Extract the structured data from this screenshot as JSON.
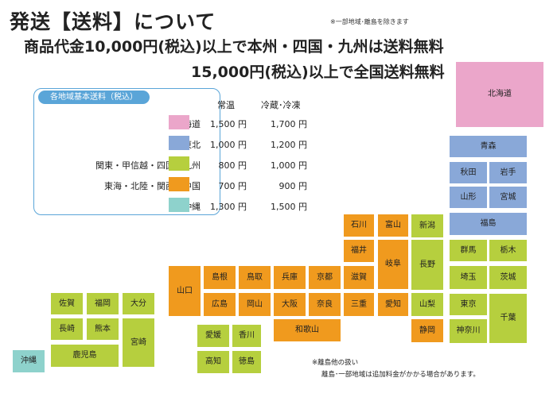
{
  "header": {
    "title": "発送【送料】について",
    "note": "※一部地域･離島を除きます",
    "line1": "商品代金10,000円(税込)以上で本州・四国・九州は送料無料",
    "line2": "15,000円(税込)以上で全国送料無料"
  },
  "rate_table": {
    "title": "各地域基本送料（税込）",
    "col_normal": "常温",
    "col_cold": "冷蔵･冷凍",
    "rows": [
      {
        "region": "北海道",
        "normal": "1,500 円",
        "cold": "1,700 円",
        "color": "#eba6ca"
      },
      {
        "region": "東北",
        "normal": "1,000 円",
        "cold": "1,200 円",
        "color": "#89a8d8"
      },
      {
        "region": "関東・甲信越・四国・九州",
        "normal": "800 円",
        "cold": "1,000 円",
        "color": "#b6cf3e"
      },
      {
        "region": "東海・北陸・関西・中国",
        "normal": "700 円",
        "cold": "900 円",
        "color": "#f09a1e"
      },
      {
        "region": "沖縄",
        "normal": "1,300 円",
        "cold": "1,500 円",
        "color": "#8ed2cc"
      }
    ]
  },
  "map": {
    "hokkaido": "北海道",
    "aomori": "青森",
    "akita": "秋田",
    "iwate": "岩手",
    "yamagata": "山形",
    "miyagi": "宮城",
    "fukushima": "福島",
    "gunma": "群馬",
    "tochigi": "栃木",
    "saitama": "埼玉",
    "ibaraki": "茨城",
    "tokyo": "東京",
    "chiba": "千葉",
    "kanagawa": "神奈川",
    "niigata": "新潟",
    "nagano": "長野",
    "yamanashi": "山梨",
    "ishikawa": "石川",
    "toyama": "富山",
    "fukui": "福井",
    "gifu": "岐阜",
    "shiga": "滋賀",
    "kyoto": "京都",
    "hyogo": "兵庫",
    "mie": "三重",
    "aichi": "愛知",
    "shizuoka": "静岡",
    "osaka": "大阪",
    "nara": "奈良",
    "wakayama": "和歌山",
    "tottori": "鳥取",
    "shimane": "島根",
    "okayama": "岡山",
    "hiroshima": "広島",
    "yamaguchi": "山口",
    "kagawa": "香川",
    "ehime": "愛媛",
    "kochi": "高知",
    "tokushima": "徳島",
    "fukuoka": "福岡",
    "saga": "佐賀",
    "oita": "大分",
    "nagasaki": "長崎",
    "kumamoto": "熊本",
    "miyazaki": "宮崎",
    "kagoshima": "鹿児島",
    "okinawa": "沖縄"
  },
  "footer": {
    "note1": "※離島他の扱い",
    "note2": "離島･一部地域は追加料金がかかる場合があります。"
  }
}
